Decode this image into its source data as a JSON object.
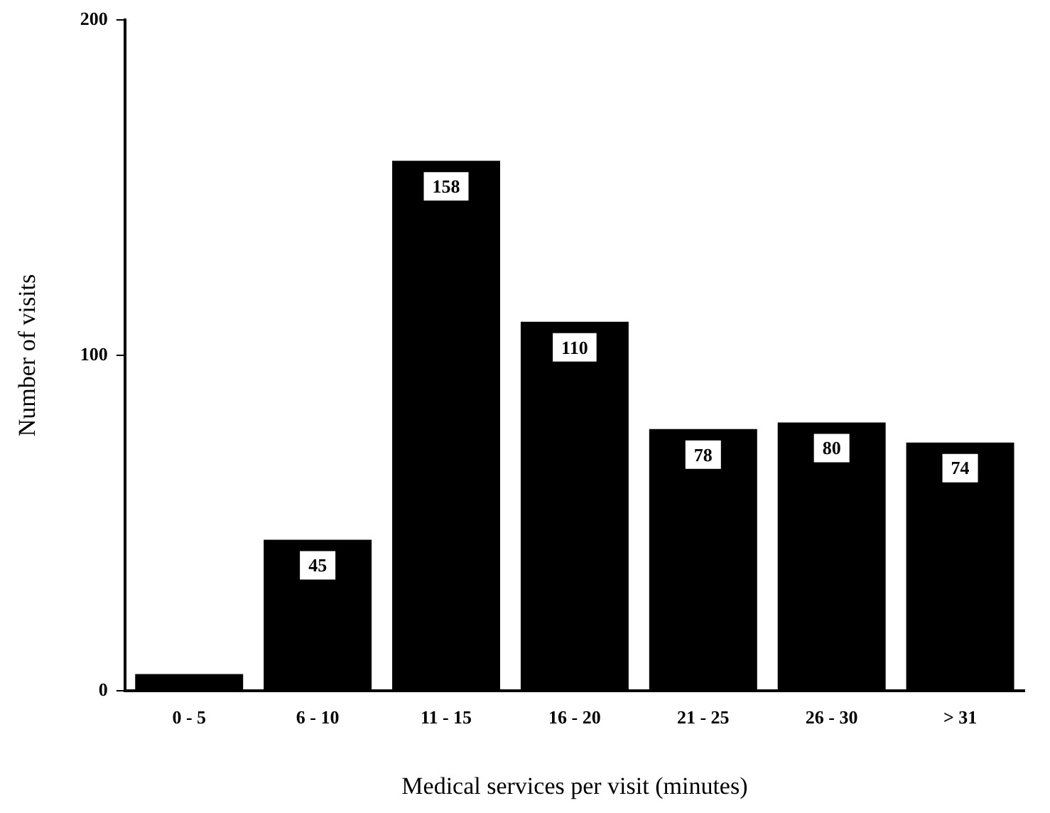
{
  "chart_data": {
    "type": "bar",
    "categories": [
      "0 - 5",
      "6 - 10",
      "11 - 15",
      "16 - 20",
      "21 - 25",
      "26 - 30",
      "> 31"
    ],
    "values": [
      5,
      45,
      158,
      110,
      78,
      80,
      74
    ],
    "value_labels": [
      null,
      "45",
      "158",
      "110",
      "78",
      "80",
      "74"
    ],
    "color": "#000000",
    "xlabel": "Medical services per visit (minutes)",
    "ylabel": "Number of visits",
    "ylim": [
      0,
      200
    ],
    "yticks": [
      0,
      100,
      200
    ],
    "grid": false,
    "legend": false
  }
}
